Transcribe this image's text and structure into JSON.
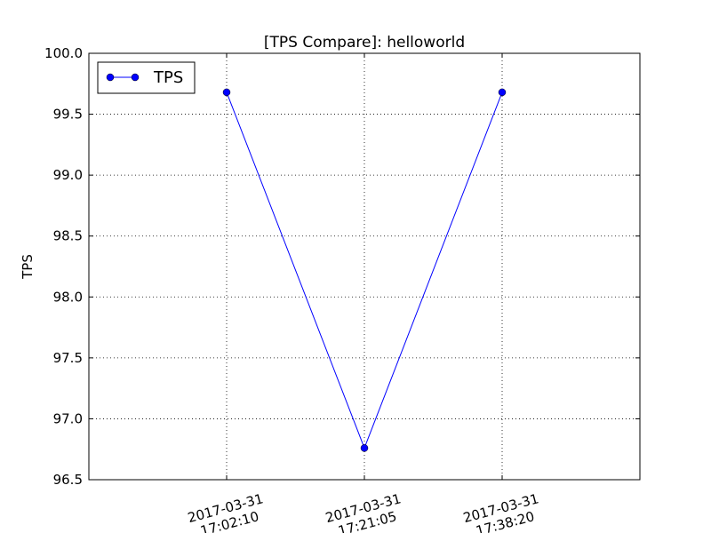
{
  "chart_data": {
    "type": "line",
    "title": "[TPS Compare]: helloworld",
    "xlabel": "",
    "ylabel": "TPS",
    "categories": [
      "2017-03-31 17:02:10",
      "2017-03-31 17:21:05",
      "2017-03-31 17:38:20"
    ],
    "category_lines": [
      [
        "2017-03-31",
        "17:02:10"
      ],
      [
        "2017-03-31",
        "17:21:05"
      ],
      [
        "2017-03-31",
        "17:38:20"
      ]
    ],
    "series": [
      {
        "name": "TPS",
        "values": [
          99.68,
          96.76,
          99.68
        ],
        "color": "#0000ff"
      }
    ],
    "ylim": [
      96.5,
      100.0
    ],
    "yticks": [
      "96.5",
      "97.0",
      "97.5",
      "98.0",
      "98.5",
      "99.0",
      "99.5",
      "100.0"
    ],
    "grid": true,
    "legend": "top-left"
  }
}
